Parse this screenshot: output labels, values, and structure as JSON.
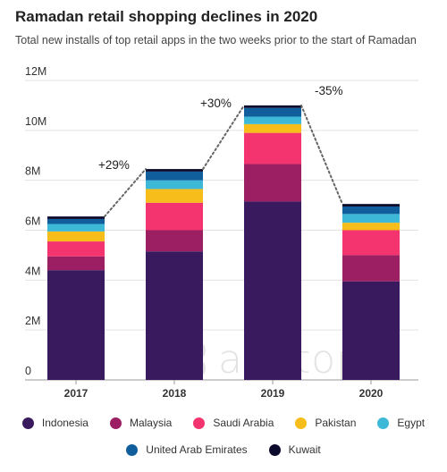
{
  "title": "Ramadan retail shopping declines in 2020",
  "subtitle": "Total new installs of top retail apps in the two weeks prior to the start of Ramadan",
  "watermark": "apptopia",
  "chart_data": {
    "type": "bar",
    "stacked": true,
    "categories": [
      "2017",
      "2018",
      "2019",
      "2020"
    ],
    "ylim": [
      0,
      12000000
    ],
    "yticks": [
      {
        "value": 0,
        "label": "0"
      },
      {
        "value": 2000000,
        "label": "2M"
      },
      {
        "value": 4000000,
        "label": "4M"
      },
      {
        "value": 6000000,
        "label": "6M"
      },
      {
        "value": 8000000,
        "label": "8M"
      },
      {
        "value": 10000000,
        "label": "10M"
      },
      {
        "value": 12000000,
        "label": "12M"
      }
    ],
    "grid": "horizontal",
    "legend_position": "bottom",
    "series": [
      {
        "name": "Indonesia",
        "color": "#3a1a5e",
        "values": [
          4400000,
          5150000,
          7150000,
          3950000
        ]
      },
      {
        "name": "Malaysia",
        "color": "#9c1f63",
        "values": [
          550000,
          850000,
          1500000,
          1050000
        ]
      },
      {
        "name": "Saudi Arabia",
        "color": "#f4346f",
        "values": [
          600000,
          1100000,
          1250000,
          1000000
        ]
      },
      {
        "name": "Pakistan",
        "color": "#f7bd1a",
        "values": [
          400000,
          550000,
          350000,
          300000
        ]
      },
      {
        "name": "Egypt",
        "color": "#3db8d6",
        "values": [
          300000,
          350000,
          300000,
          350000
        ]
      },
      {
        "name": "United Arab Emirates",
        "color": "#115e9c",
        "values": [
          200000,
          350000,
          350000,
          300000
        ]
      },
      {
        "name": "Kuwait",
        "color": "#0c0a2c",
        "values": [
          100000,
          100000,
          100000,
          100000
        ]
      }
    ],
    "annotations": [
      {
        "between": [
          "2017",
          "2018"
        ],
        "label": "+29%"
      },
      {
        "between": [
          "2018",
          "2019"
        ],
        "label": "+30%"
      },
      {
        "between": [
          "2019",
          "2020"
        ],
        "label": "-35%"
      }
    ]
  }
}
